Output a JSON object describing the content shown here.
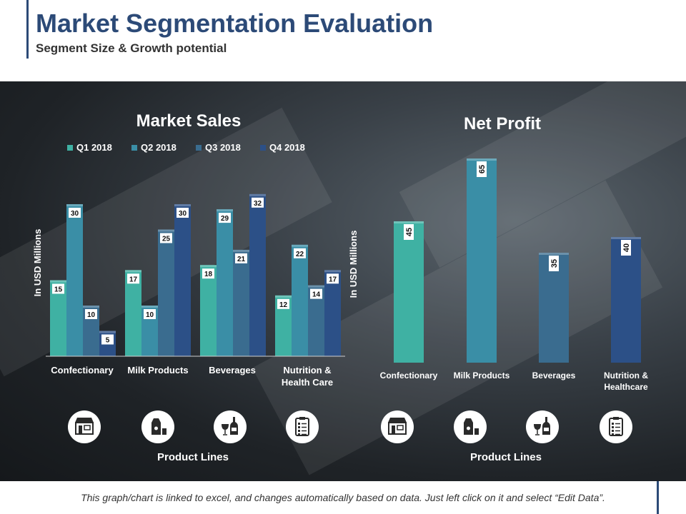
{
  "header": {
    "title": "Market Segmentation Evaluation",
    "subtitle": "Segment Size & Growth  potential"
  },
  "footer": {
    "note": "This graph/chart is linked to excel, and changes automatically based on data. Just left click on it and select “Edit Data”."
  },
  "colors": {
    "q1": "#3fb1a3",
    "q2": "#3a8ea6",
    "q3": "#3a6c8f",
    "q4": "#2c5087",
    "title": "#2c4a77",
    "net_profit_bars": [
      "#3fb1a3",
      "#3a8ea6",
      "#3a6c8f",
      "#2c5087"
    ]
  },
  "icons": [
    "store-icon",
    "milk-icon",
    "wine-icon",
    "checklist-icon"
  ],
  "chart_data": [
    {
      "type": "bar",
      "title": "Market Sales",
      "ylabel": "In USD Millions",
      "xlabel": "Product Lines",
      "categories": [
        "Confectionary",
        "Milk Products",
        "Beverages",
        "Nutrition & Health Care"
      ],
      "category_lines": [
        [
          "Confectionary"
        ],
        [
          "Milk Products"
        ],
        [
          "Beverages"
        ],
        [
          "Nutrition &",
          "Health Care"
        ]
      ],
      "series": [
        {
          "name": "Q1 2018",
          "values": [
            15,
            17,
            18,
            12
          ]
        },
        {
          "name": "Q2 2018",
          "values": [
            30,
            10,
            29,
            22
          ]
        },
        {
          "name": "Q3 2018",
          "values": [
            10,
            25,
            21,
            14
          ]
        },
        {
          "name": "Q4 2018",
          "values": [
            5,
            30,
            32,
            17
          ]
        }
      ],
      "ylim": [
        0,
        32
      ],
      "legend": "top",
      "grid": false
    },
    {
      "type": "bar",
      "title": "Net Profit",
      "ylabel": "In USD Millions",
      "xlabel": "Product Lines",
      "categories": [
        "Confectionary",
        "Milk Products",
        "Beverages",
        "Nutrition & Healthcare"
      ],
      "category_lines": [
        [
          "Confectionary"
        ],
        [
          "Milk Products"
        ],
        [
          "Beverages"
        ],
        [
          "Nutrition &",
          "Healthcare"
        ]
      ],
      "values": [
        45,
        65,
        35,
        40
      ],
      "ylim": [
        0,
        65
      ],
      "grid": false
    }
  ]
}
